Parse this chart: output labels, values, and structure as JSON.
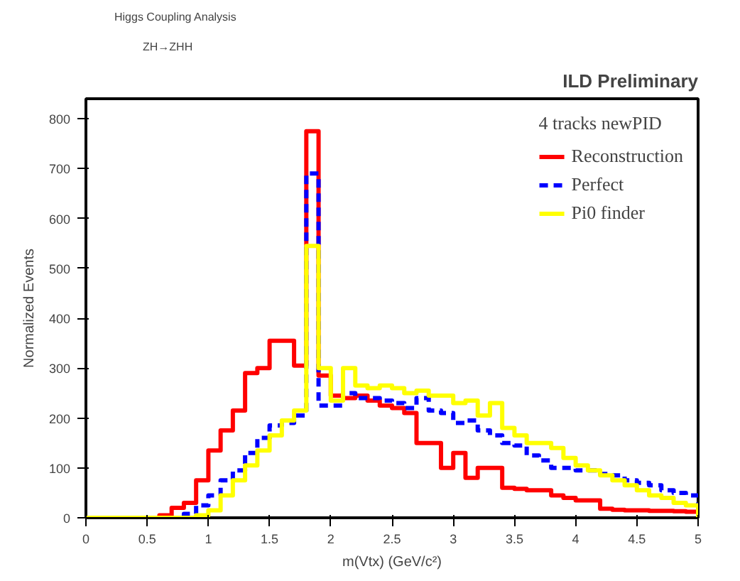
{
  "chart_data": {
    "type": "histogram",
    "title": "Higgs Coupling Analysis",
    "subtitle": "ZH→ZHH",
    "annotations": [
      "ILD Preliminary"
    ],
    "xlabel": "m(Vtx) (GeV/c²)",
    "ylabel": "Normalized Events",
    "legend_title": "4 tracks newPID",
    "bins": [
      0,
      0.1,
      0.2,
      0.3,
      0.4,
      0.5,
      0.6,
      0.7,
      0.8,
      0.9,
      1.0,
      1.1,
      1.2,
      1.3,
      1.4,
      1.5,
      1.6,
      1.7,
      1.8,
      1.9,
      2.0,
      2.1,
      2.2,
      2.3,
      2.4,
      2.5,
      2.6,
      2.7,
      2.8,
      2.9,
      3.0,
      3.1,
      3.2,
      3.3,
      3.4,
      3.5,
      3.6,
      3.7,
      3.8,
      3.9,
      4.0,
      4.1,
      4.2,
      4.3,
      4.4,
      4.5,
      4.6,
      4.7,
      4.8,
      4.9,
      5.0
    ],
    "series": [
      {
        "name": "Reconstruction",
        "color": "#ff0000",
        "line_style": "solid",
        "values": [
          0,
          0,
          0,
          0,
          0,
          0,
          5,
          20,
          30,
          75,
          135,
          175,
          215,
          290,
          300,
          355,
          355,
          305,
          775,
          285,
          245,
          240,
          245,
          235,
          225,
          220,
          210,
          150,
          150,
          100,
          130,
          80,
          100,
          100,
          60,
          58,
          55,
          55,
          45,
          40,
          35,
          35,
          18,
          16,
          15,
          15,
          14,
          14,
          13,
          12
        ]
      },
      {
        "name": "Perfect",
        "color": "#0000ff",
        "line_style": "dashed",
        "values": [
          0,
          0,
          0,
          0,
          0,
          0,
          0,
          0,
          8,
          25,
          45,
          75,
          95,
          130,
          160,
          185,
          190,
          205,
          690,
          225,
          225,
          250,
          240,
          240,
          235,
          230,
          220,
          240,
          215,
          210,
          190,
          195,
          175,
          165,
          150,
          145,
          125,
          115,
          100,
          100,
          95,
          95,
          88,
          85,
          75,
          70,
          65,
          55,
          50,
          45
        ]
      },
      {
        "name": "Pi0 finder",
        "color": "#ffff00",
        "line_style": "solid",
        "values": [
          0,
          0,
          0,
          0,
          0,
          0,
          0,
          0,
          0,
          5,
          15,
          45,
          75,
          105,
          135,
          165,
          195,
          215,
          545,
          300,
          235,
          300,
          265,
          260,
          265,
          260,
          250,
          255,
          245,
          245,
          230,
          235,
          205,
          230,
          180,
          165,
          150,
          150,
          140,
          120,
          105,
          95,
          85,
          75,
          65,
          55,
          45,
          40,
          30,
          25
        ]
      }
    ],
    "xlim": [
      0,
      5
    ],
    "ylim": [
      0,
      840
    ],
    "xticks": [
      0,
      0.5,
      1,
      1.5,
      2,
      2.5,
      3,
      3.5,
      4,
      4.5,
      5
    ],
    "yticks": [
      0,
      100,
      200,
      300,
      400,
      500,
      600,
      700,
      800
    ],
    "grid": false,
    "legend": "top right"
  }
}
